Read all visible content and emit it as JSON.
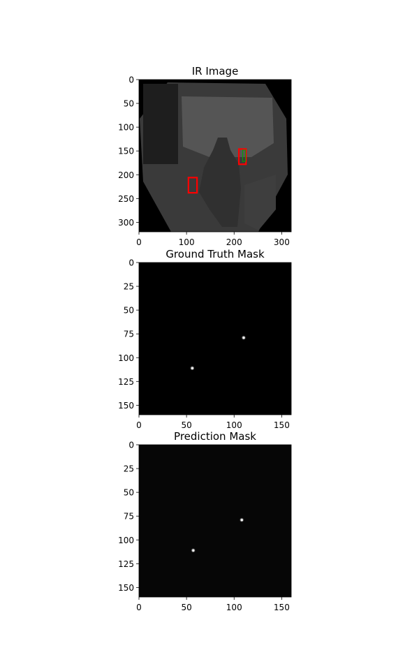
{
  "chart_data": [
    {
      "type": "heatmap",
      "title": "IR Image",
      "colormap": "gray",
      "xlim": [
        0,
        320
      ],
      "ylim": [
        320,
        0
      ],
      "xticks": [
        0,
        100,
        200,
        300
      ],
      "yticks": [
        0,
        50,
        100,
        150,
        200,
        250,
        300
      ],
      "boxes": [
        {
          "color": "#ff0000",
          "x": [
            210,
            225
          ],
          "y": [
            146,
            178
          ]
        },
        {
          "color": "#ff0000",
          "x": [
            104,
            122
          ],
          "y": [
            206,
            238
          ]
        }
      ],
      "inner_marks": [
        {
          "color": "#00aa00",
          "x": [
            218,
            224
          ],
          "y": [
            148,
            172
          ]
        }
      ]
    },
    {
      "type": "heatmap",
      "title": "Ground Truth Mask",
      "colormap": "gray",
      "xlim": [
        0,
        160
      ],
      "ylim": [
        160,
        0
      ],
      "xticks": [
        0,
        50,
        100,
        150
      ],
      "yticks": [
        0,
        25,
        50,
        75,
        100,
        125,
        150
      ],
      "points": [
        {
          "x": 110,
          "y": 79
        },
        {
          "x": 56,
          "y": 111
        }
      ]
    },
    {
      "type": "heatmap",
      "title": "Prediction Mask",
      "colormap": "gray",
      "xlim": [
        0,
        160
      ],
      "ylim": [
        160,
        0
      ],
      "xticks": [
        0,
        50,
        100,
        150
      ],
      "yticks": [
        0,
        25,
        50,
        75,
        100,
        125,
        150
      ],
      "background": "#060606",
      "points": [
        {
          "x": 108,
          "y": 79
        },
        {
          "x": 57,
          "y": 111
        }
      ]
    }
  ]
}
